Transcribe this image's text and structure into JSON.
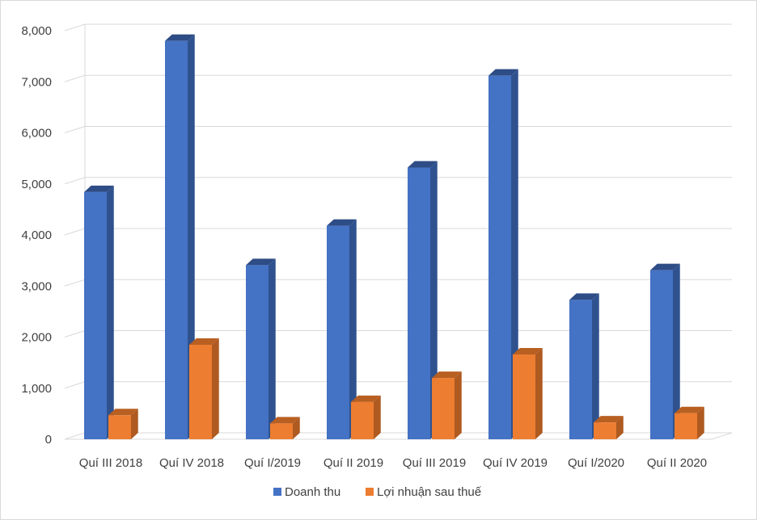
{
  "chart_data": {
    "type": "bar",
    "title": "",
    "xlabel": "",
    "ylabel": "",
    "ylim": [
      0,
      8000
    ],
    "yticks": [
      0,
      1000,
      2000,
      3000,
      4000,
      5000,
      6000,
      7000,
      8000
    ],
    "ytick_labels": [
      "0",
      "1,000",
      "2,000",
      "3,000",
      "4,000",
      "5,000",
      "6,000",
      "7,000",
      "8,000"
    ],
    "grid": true,
    "legend_position": "bottom",
    "categories": [
      "Quí III 2018",
      "Quí IV 2018",
      "Quí I/2019",
      "Quí II 2019",
      "Quí III 2019",
      "Quí IV 2019",
      "Quí I/2020",
      "Quí II 2020"
    ],
    "series": [
      {
        "name": "Doanh thu",
        "color": "#4472C4",
        "side_color": "#2F528F",
        "top_color": "#2E4C85",
        "values": [
          4840,
          7800,
          3410,
          4180,
          5320,
          7120,
          2730,
          3310
        ]
      },
      {
        "name": "Lợi nhuận sau thuế",
        "color": "#ED7D31",
        "side_color": "#AE5A21",
        "top_color": "#B85F22",
        "values": [
          470,
          1850,
          310,
          730,
          1200,
          1660,
          330,
          510
        ]
      }
    ]
  }
}
